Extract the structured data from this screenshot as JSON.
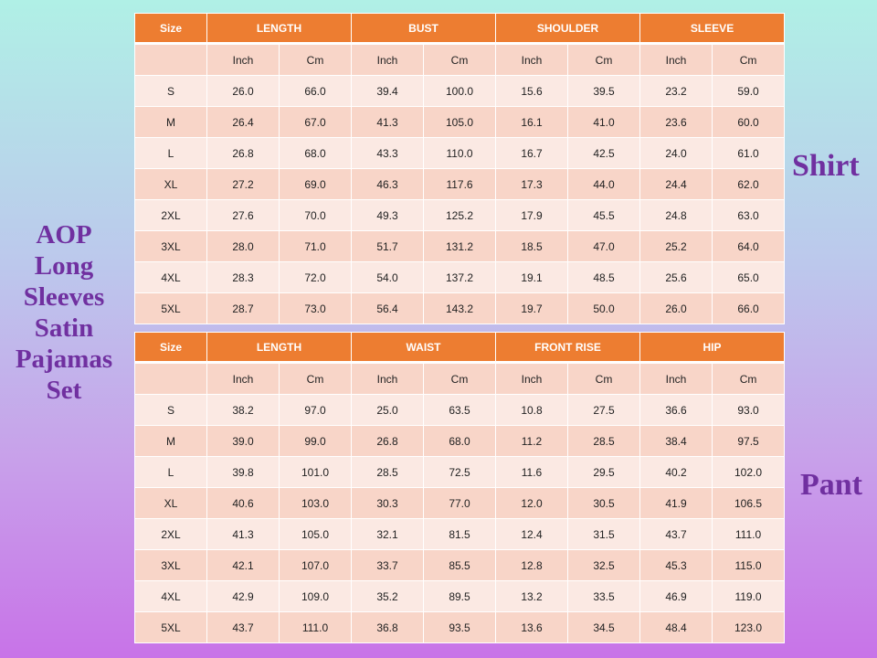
{
  "title_lines": [
    "AOP",
    "Long",
    "Sleeves",
    "Satin",
    "Pajamas",
    "Set"
  ],
  "labels": {
    "shirt": "Shirt",
    "pant": "Pant"
  },
  "colors": {
    "header": "#ed7d31",
    "title": "#7030a0"
  },
  "shirt_table": {
    "headers": [
      "Size",
      "LENGTH",
      "BUST",
      "SHOULDER",
      "SLEEVE"
    ],
    "units": [
      "Inch",
      "Cm",
      "Inch",
      "Cm",
      "Inch",
      "Cm",
      "Inch",
      "Cm"
    ],
    "rows": [
      [
        "S",
        "26.0",
        "66.0",
        "39.4",
        "100.0",
        "15.6",
        "39.5",
        "23.2",
        "59.0"
      ],
      [
        "M",
        "26.4",
        "67.0",
        "41.3",
        "105.0",
        "16.1",
        "41.0",
        "23.6",
        "60.0"
      ],
      [
        "L",
        "26.8",
        "68.0",
        "43.3",
        "110.0",
        "16.7",
        "42.5",
        "24.0",
        "61.0"
      ],
      [
        "XL",
        "27.2",
        "69.0",
        "46.3",
        "117.6",
        "17.3",
        "44.0",
        "24.4",
        "62.0"
      ],
      [
        "2XL",
        "27.6",
        "70.0",
        "49.3",
        "125.2",
        "17.9",
        "45.5",
        "24.8",
        "63.0"
      ],
      [
        "3XL",
        "28.0",
        "71.0",
        "51.7",
        "131.2",
        "18.5",
        "47.0",
        "25.2",
        "64.0"
      ],
      [
        "4XL",
        "28.3",
        "72.0",
        "54.0",
        "137.2",
        "19.1",
        "48.5",
        "25.6",
        "65.0"
      ],
      [
        "5XL",
        "28.7",
        "73.0",
        "56.4",
        "143.2",
        "19.7",
        "50.0",
        "26.0",
        "66.0"
      ]
    ]
  },
  "pant_table": {
    "headers": [
      "Size",
      "LENGTH",
      "WAIST",
      "FRONT RISE",
      "HIP"
    ],
    "units": [
      "Inch",
      "Cm",
      "Inch",
      "Cm",
      "Inch",
      "Cm",
      "Inch",
      "Cm"
    ],
    "rows": [
      [
        "S",
        "38.2",
        "97.0",
        "25.0",
        "63.5",
        "10.8",
        "27.5",
        "36.6",
        "93.0"
      ],
      [
        "M",
        "39.0",
        "99.0",
        "26.8",
        "68.0",
        "11.2",
        "28.5",
        "38.4",
        "97.5"
      ],
      [
        "L",
        "39.8",
        "101.0",
        "28.5",
        "72.5",
        "11.6",
        "29.5",
        "40.2",
        "102.0"
      ],
      [
        "XL",
        "40.6",
        "103.0",
        "30.3",
        "77.0",
        "12.0",
        "30.5",
        "41.9",
        "106.5"
      ],
      [
        "2XL",
        "41.3",
        "105.0",
        "32.1",
        "81.5",
        "12.4",
        "31.5",
        "43.7",
        "111.0"
      ],
      [
        "3XL",
        "42.1",
        "107.0",
        "33.7",
        "85.5",
        "12.8",
        "32.5",
        "45.3",
        "115.0"
      ],
      [
        "4XL",
        "42.9",
        "109.0",
        "35.2",
        "89.5",
        "13.2",
        "33.5",
        "46.9",
        "119.0"
      ],
      [
        "5XL",
        "43.7",
        "111.0",
        "36.8",
        "93.5",
        "13.6",
        "34.5",
        "48.4",
        "123.0"
      ]
    ]
  }
}
